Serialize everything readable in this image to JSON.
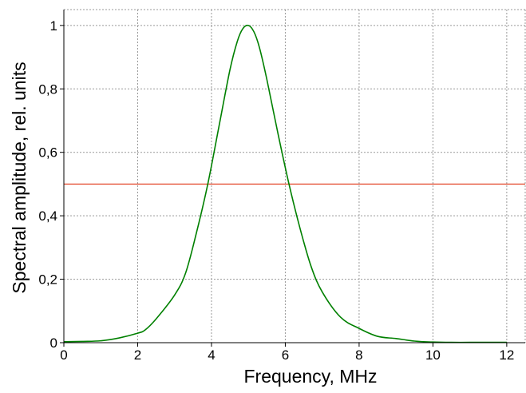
{
  "chart_data": {
    "type": "line",
    "xlabel": "Frequency, MHz",
    "ylabel": "Spectral amplitude, rel. units",
    "xlim": [
      0,
      12.5
    ],
    "ylim": [
      0,
      1.05
    ],
    "x_ticks": [
      0,
      2,
      4,
      6,
      8,
      10,
      12
    ],
    "x_tick_labels": [
      "0",
      "2",
      "4",
      "6",
      "8",
      "10",
      "12"
    ],
    "y_ticks": [
      0,
      0.2,
      0.4,
      0.6,
      0.8,
      1
    ],
    "y_tick_labels": [
      "0",
      "0,2",
      "0,4",
      "0,6",
      "0,8",
      "1"
    ],
    "grid": true,
    "series": [
      {
        "color": "#008000",
        "x": [
          0,
          0.5,
          1.0,
          1.5,
          2.0,
          2.2,
          2.5,
          3.0,
          3.3,
          3.6,
          3.9,
          4.2,
          4.5,
          4.7,
          4.85,
          5.0,
          5.15,
          5.3,
          5.5,
          5.8,
          6.1,
          6.4,
          6.7,
          7.0,
          7.5,
          8.0,
          8.5,
          9.0,
          9.5,
          10.0,
          10.5,
          11.0,
          11.5,
          12.0
        ],
        "y": [
          0.003,
          0.004,
          0.006,
          0.015,
          0.03,
          0.04,
          0.075,
          0.15,
          0.22,
          0.35,
          0.5,
          0.68,
          0.86,
          0.95,
          0.99,
          1.0,
          0.98,
          0.93,
          0.83,
          0.66,
          0.5,
          0.36,
          0.24,
          0.16,
          0.08,
          0.045,
          0.02,
          0.013,
          0.005,
          0.002,
          0.001,
          0.001,
          0.001,
          0.001
        ]
      }
    ],
    "threshold_line": {
      "y": 0.5,
      "color": "#e03010"
    }
  }
}
